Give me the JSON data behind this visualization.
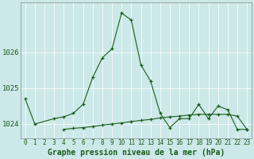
{
  "title": "Graphe pression niveau de la mer (hPa)",
  "bg_color": "#cce8e8",
  "grid_color": "#ffffff",
  "line_color": "#1a5c1a",
  "x_labels": [
    "0",
    "1",
    "2",
    "3",
    "4",
    "5",
    "6",
    "7",
    "8",
    "9",
    "10",
    "11",
    "12",
    "13",
    "14",
    "15",
    "16",
    "17",
    "18",
    "19",
    "20",
    "21",
    "22",
    "23"
  ],
  "hours": [
    0,
    1,
    2,
    3,
    4,
    5,
    6,
    7,
    8,
    9,
    10,
    11,
    12,
    13,
    14,
    15,
    16,
    17,
    18,
    19,
    20,
    21,
    22,
    23
  ],
  "series1": [
    1024.7,
    1024.0,
    null,
    1024.15,
    1024.2,
    1024.3,
    1024.55,
    1025.3,
    1025.85,
    1026.1,
    1027.1,
    1026.9,
    1025.65,
    1025.2,
    1024.3,
    1023.9,
    1024.15,
    1024.15,
    1024.55,
    1024.15,
    1024.5,
    1024.4,
    1023.85,
    1023.85
  ],
  "series2": [
    null,
    null,
    null,
    null,
    1023.85,
    1023.88,
    1023.9,
    1023.93,
    1023.97,
    1024.0,
    1024.03,
    1024.07,
    1024.1,
    1024.13,
    1024.17,
    1024.2,
    1024.22,
    1024.25,
    1024.27,
    1024.27,
    1024.27,
    1024.27,
    1024.22,
    1023.85
  ],
  "ylim_min": 1023.6,
  "ylim_max": 1027.4,
  "yticks": [
    1024,
    1025,
    1026
  ],
  "title_fontsize": 7,
  "tick_fontsize": 5.5,
  "marker_size": 3.5,
  "linewidth": 0.8
}
